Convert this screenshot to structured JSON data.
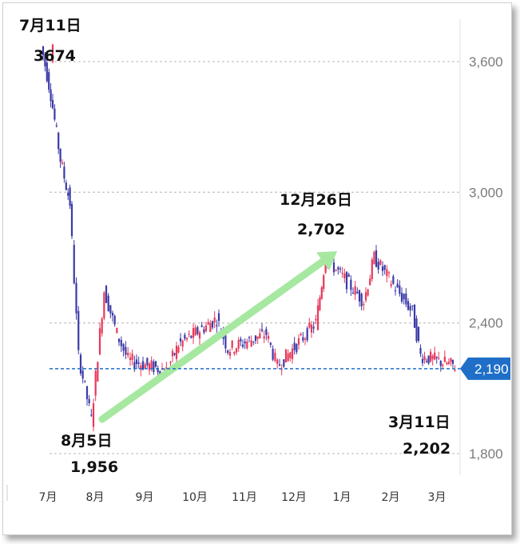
{
  "chart_data": {
    "type": "candlestick",
    "title": "",
    "xlabel": "",
    "ylabel": "",
    "ylim": [
      1800,
      3700
    ],
    "y_ticks": [
      "3,600",
      "3,000",
      "2,400",
      "1,800"
    ],
    "y_tick_values": [
      3600,
      3000,
      2400,
      1800
    ],
    "x_ticks": [
      "7月",
      "8月",
      "9月",
      "10月",
      "11月",
      "12月",
      "1月",
      "2月",
      "3月"
    ],
    "current_price": 2190,
    "current_price_label": "2,190",
    "grid": true,
    "colors": {
      "up": "#e8385a",
      "down": "#3a3aa8",
      "arrow": "#a6e8a0",
      "current": "#1f6fc8"
    },
    "price_path": [
      [
        "7月",
        3600
      ],
      [
        "7月",
        3674
      ],
      [
        "7月",
        3450
      ],
      [
        "7月",
        3150
      ],
      [
        "7月",
        2950
      ],
      [
        "8月",
        2250
      ],
      [
        "8月",
        1956
      ],
      [
        "8月",
        2550
      ],
      [
        "8月",
        2350
      ],
      [
        "9月",
        2230
      ],
      [
        "9月",
        2180
      ],
      [
        "10月",
        2300
      ],
      [
        "10月",
        2420
      ],
      [
        "11月",
        2280
      ],
      [
        "11月",
        2350
      ],
      [
        "12月",
        2200
      ],
      [
        "12月",
        2400
      ],
      [
        "1月",
        2702
      ],
      [
        "1月",
        2500
      ],
      [
        "2月",
        2700
      ],
      [
        "2月",
        2450
      ],
      [
        "3月",
        2250
      ],
      [
        "3月",
        2202
      ]
    ],
    "annotations": [
      {
        "date": "7月11日",
        "value": "3674"
      },
      {
        "date": "8月5日",
        "value": "1,956"
      },
      {
        "date": "12月26日",
        "value": "2,702"
      },
      {
        "date": "3月11日",
        "value": "2,202"
      }
    ]
  }
}
